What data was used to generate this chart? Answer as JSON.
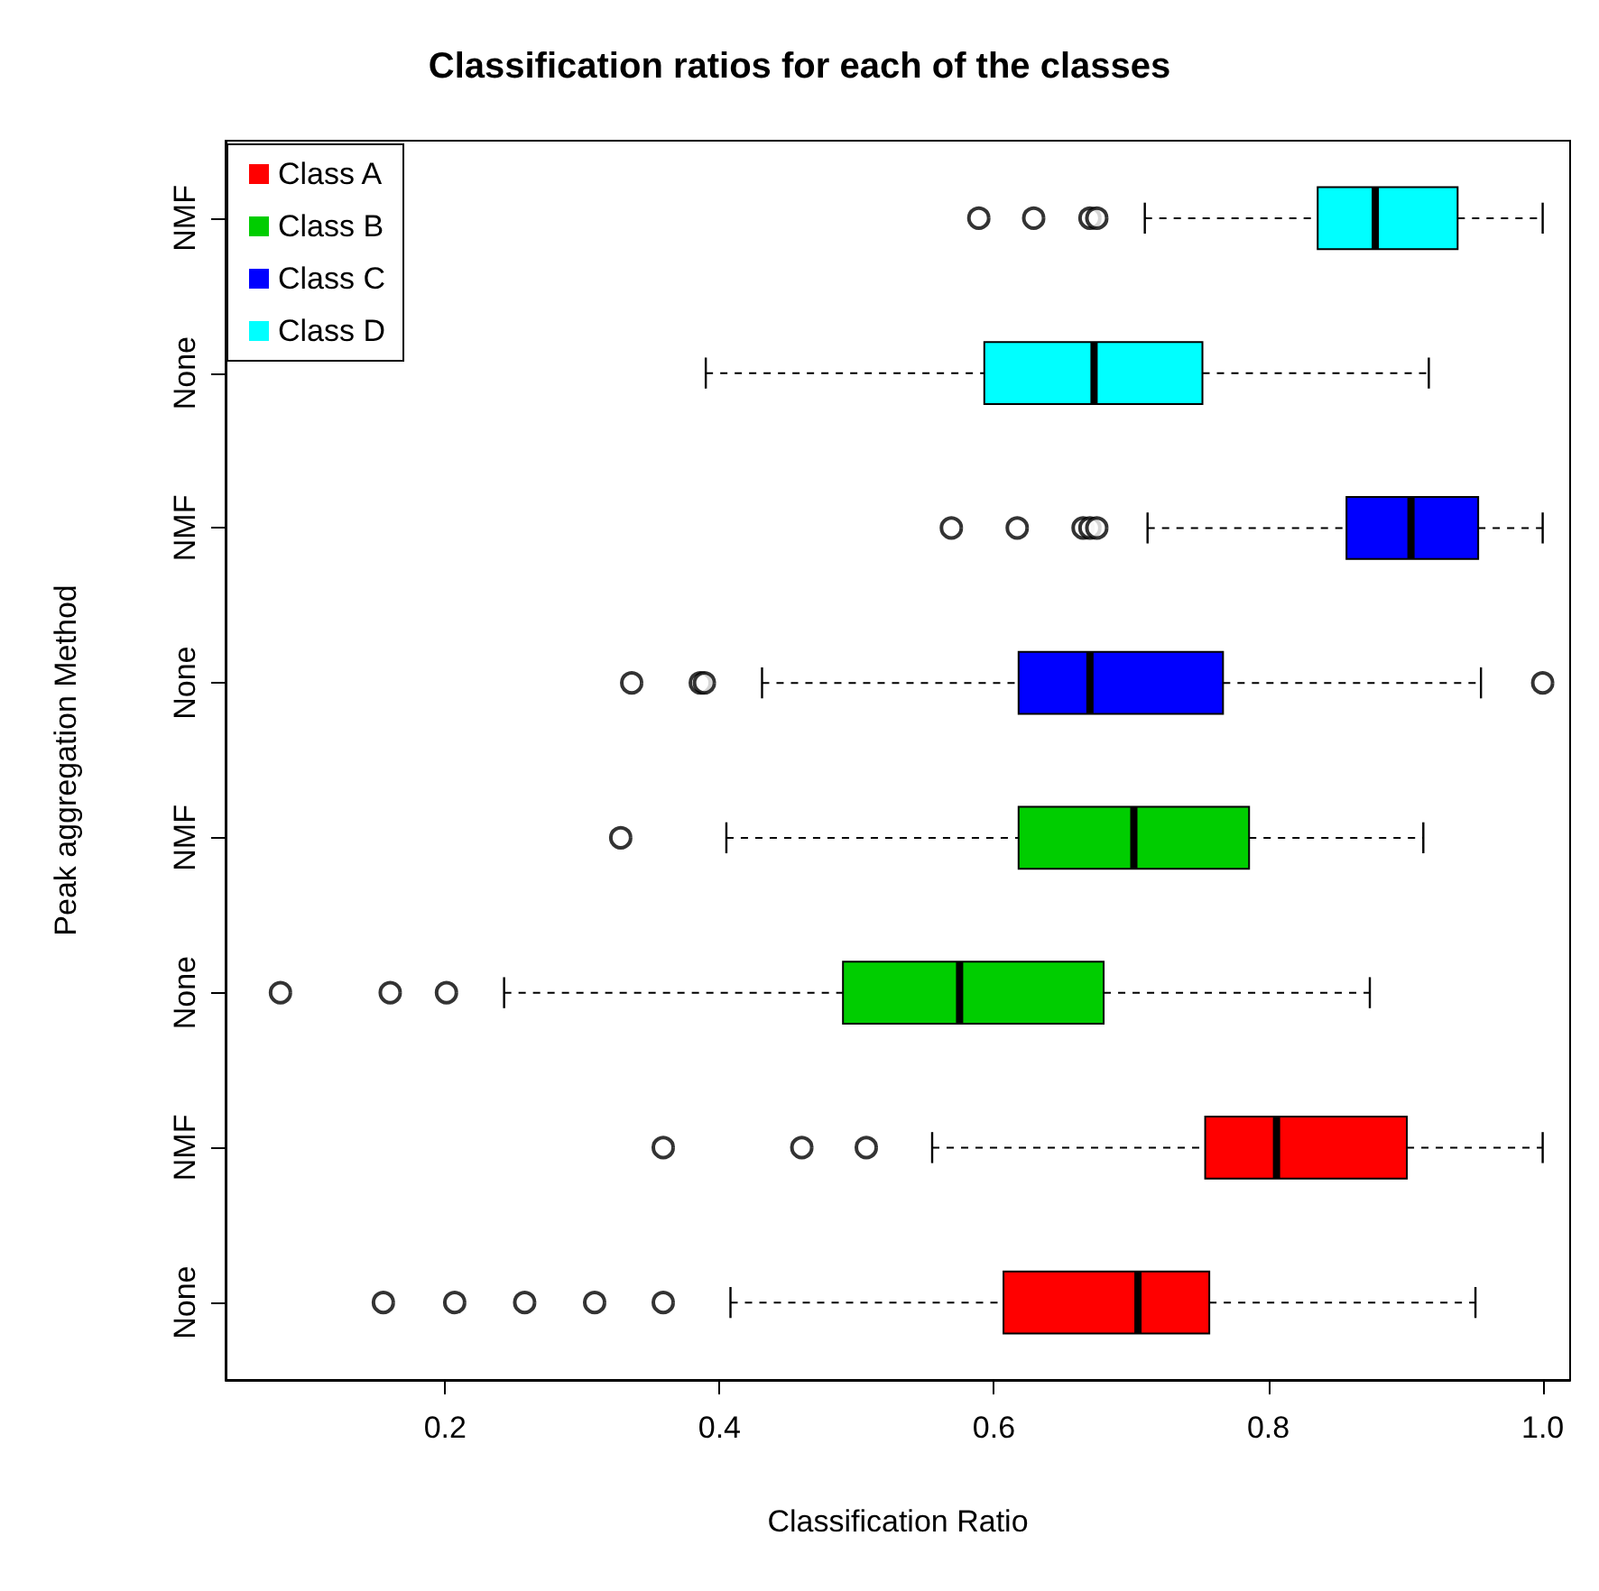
{
  "chart_data": {
    "type": "box",
    "orientation": "horizontal",
    "title": "Classification ratios for each of the classes",
    "xlabel": "Classification Ratio",
    "ylabel": "Peak aggregation Method",
    "categories": [
      "NMF",
      "None",
      "NMF",
      "None",
      "NMF",
      "None",
      "NMF",
      "None"
    ],
    "xlim": [
      0.04,
      1.02
    ],
    "xticks": [
      0.2,
      0.4,
      0.6,
      0.8,
      {
        "value": 1.0,
        "label": "1.0"
      }
    ],
    "grid": false,
    "legend": "top left",
    "series": [
      {
        "name": "Class A",
        "color": "#ff0000",
        "boxes": [
          null,
          null,
          null,
          null,
          null,
          null,
          {
            "low": 0.555,
            "q1": 0.754,
            "median": 0.806,
            "q3": 0.901,
            "high": 1.0,
            "outliers": [
              0.359,
              0.46,
              0.507
            ]
          },
          {
            "low": 0.408,
            "q1": 0.607,
            "median": 0.705,
            "q3": 0.757,
            "high": 0.951,
            "outliers": [
              0.155,
              0.207,
              0.258,
              0.309,
              0.359
            ]
          }
        ]
      },
      {
        "name": "Class B",
        "color": "#00cd00",
        "boxes": [
          null,
          null,
          null,
          null,
          {
            "low": 0.405,
            "q1": 0.618,
            "median": 0.702,
            "q3": 0.786,
            "high": 0.913,
            "outliers": [
              0.328
            ]
          },
          {
            "low": 0.243,
            "q1": 0.49,
            "median": 0.575,
            "q3": 0.68,
            "high": 0.874,
            "outliers": [
              0.08,
              0.16,
              0.201
            ]
          },
          null,
          null
        ]
      },
      {
        "name": "Class C",
        "color": "#0000ff",
        "boxes": [
          null,
          null,
          {
            "low": 0.712,
            "q1": 0.857,
            "median": 0.904,
            "q3": 0.953,
            "high": 1.0,
            "outliers": [
              0.569,
              0.617,
              0.665,
              0.67,
              0.675
            ]
          },
          {
            "low": 0.431,
            "q1": 0.618,
            "median": 0.67,
            "q3": 0.767,
            "high": 0.955,
            "outliers": [
              0.336,
              0.386,
              0.389,
              1.0
            ]
          },
          null,
          null,
          null,
          null
        ]
      },
      {
        "name": "Class D",
        "color": "#00ffff",
        "boxes": [
          {
            "low": 0.71,
            "q1": 0.836,
            "median": 0.878,
            "q3": 0.938,
            "high": 1.0,
            "outliers": [
              0.589,
              0.629,
              0.67,
              0.675
            ]
          },
          {
            "low": 0.39,
            "q1": 0.593,
            "median": 0.673,
            "q3": 0.752,
            "high": 0.917
          },
          null,
          null,
          null,
          null,
          null,
          null
        ]
      }
    ]
  }
}
